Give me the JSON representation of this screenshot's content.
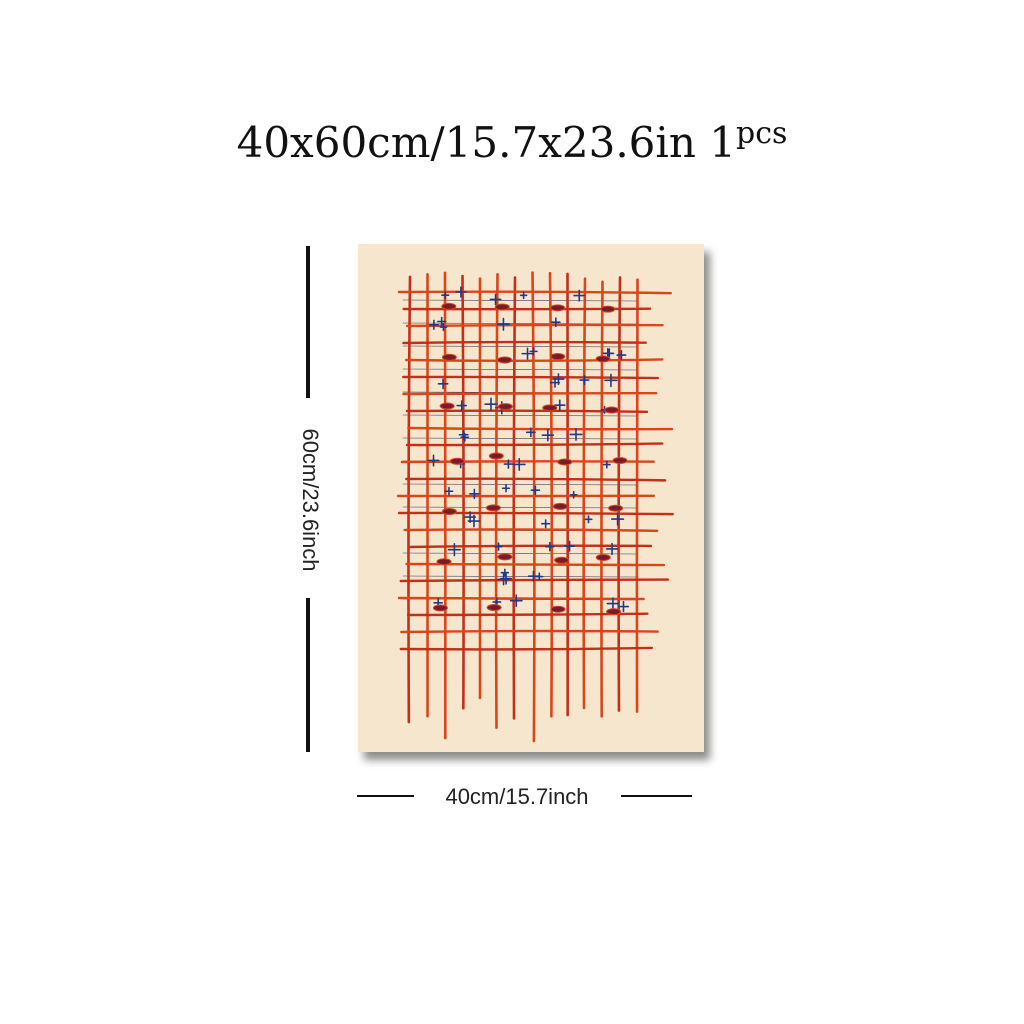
{
  "title": {
    "size_text": "40x60cm/15.7x23.6in",
    "quantity_number": "1",
    "quantity_unit": "pcs"
  },
  "dimensions": {
    "height_label": "60cm/23.6inch",
    "width_label": "40cm/15.7inch"
  },
  "artwork": {
    "description_colors": {
      "background": "#f6e6cd",
      "grid_lines": "#d9461a",
      "grid_lines_dark": "#c2301a",
      "accent_marks": "#1d3a8a",
      "eye_marks": "#7a1a2a"
    }
  }
}
